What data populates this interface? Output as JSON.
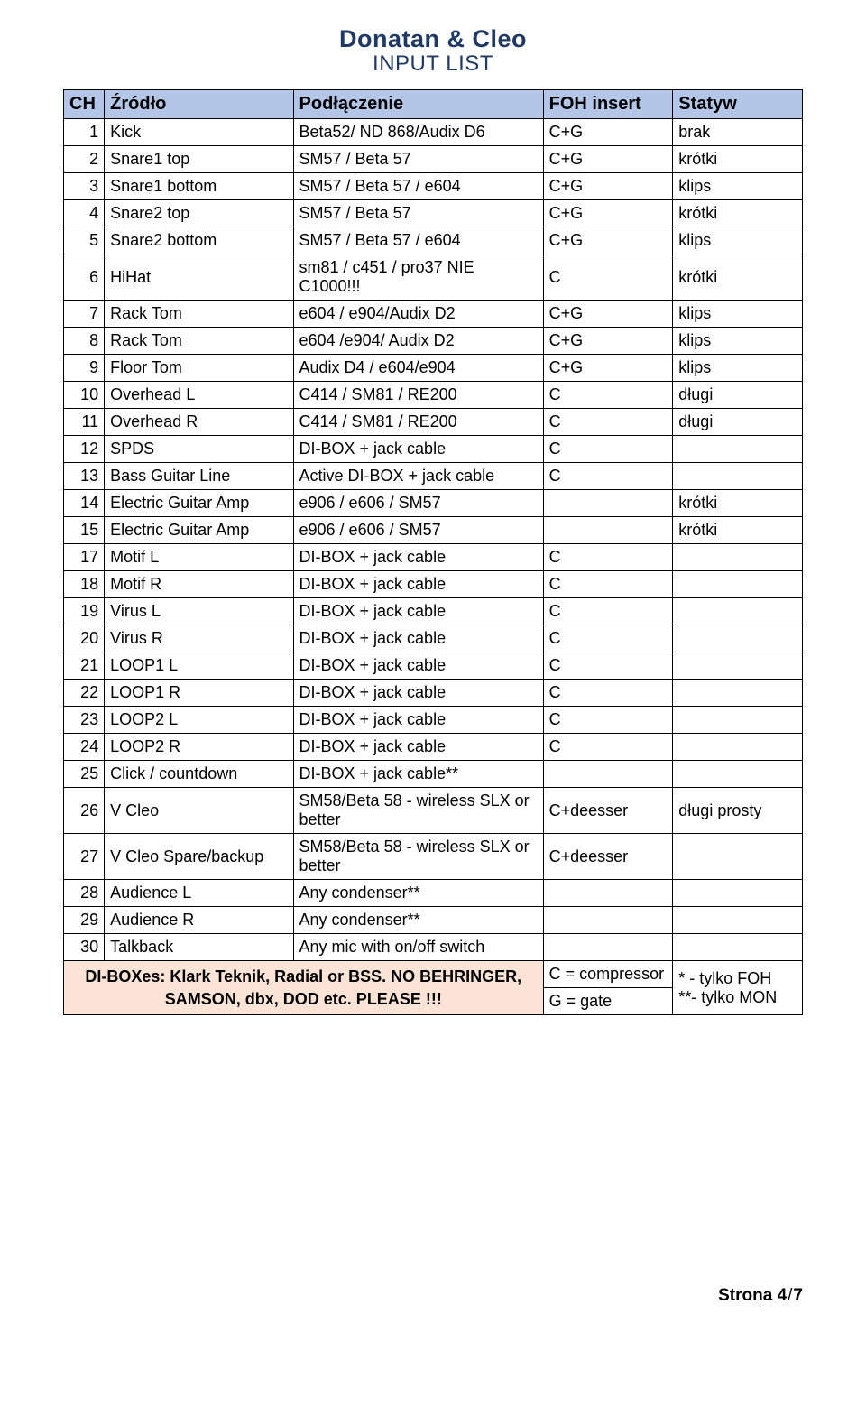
{
  "title": {
    "line1": "Donatan & Cleo",
    "line2": "INPUT LIST"
  },
  "columns": [
    "CH",
    "Źródło",
    "Podłączenie",
    "FOH insert",
    "Statyw"
  ],
  "rows": [
    {
      "ch": "1",
      "src": "Kick",
      "conn": "Beta52/ ND 868/Audix D6",
      "foh": "C+G",
      "stand": "brak"
    },
    {
      "ch": "2",
      "src": "Snare1 top",
      "conn": "SM57 / Beta 57",
      "foh": "C+G",
      "stand": "krótki"
    },
    {
      "ch": "3",
      "src": "Snare1 bottom",
      "conn": "SM57 / Beta 57 / e604",
      "foh": "C+G",
      "stand": "klips"
    },
    {
      "ch": "4",
      "src": "Snare2 top",
      "conn": "SM57 / Beta 57",
      "foh": "C+G",
      "stand": "krótki"
    },
    {
      "ch": "5",
      "src": "Snare2 bottom",
      "conn": "SM57 / Beta 57 / e604",
      "foh": "C+G",
      "stand": "klips"
    },
    {
      "ch": "6",
      "src": "HiHat",
      "conn": "sm81 / c451 / pro37 NIE C1000!!!",
      "foh": "C",
      "stand": "krótki"
    },
    {
      "ch": "7",
      "src": "Rack Tom",
      "conn": "e604 / e904/Audix D2",
      "foh": "C+G",
      "stand": "klips"
    },
    {
      "ch": "8",
      "src": "Rack Tom",
      "conn": "e604 /e904/ Audix D2",
      "foh": "C+G",
      "stand": "klips"
    },
    {
      "ch": "9",
      "src": "Floor Tom",
      "conn": "Audix D4 / e604/e904",
      "foh": "C+G",
      "stand": "klips"
    },
    {
      "ch": "10",
      "src": "Overhead L",
      "conn": "C414 / SM81 / RE200",
      "foh": "C",
      "stand": "długi"
    },
    {
      "ch": "11",
      "src": "Overhead R",
      "conn": "C414 / SM81 / RE200",
      "foh": "C",
      "stand": "długi"
    },
    {
      "ch": "12",
      "src": "SPDS",
      "conn": "DI-BOX + jack cable",
      "foh": "C",
      "stand": ""
    },
    {
      "ch": "13",
      "src": "Bass Guitar Line",
      "conn": "Active DI-BOX + jack cable",
      "foh": "C",
      "stand": ""
    },
    {
      "ch": "14",
      "src": "Electric Guitar Amp",
      "conn": "e906 / e606 / SM57",
      "foh": "",
      "stand": "krótki"
    },
    {
      "ch": "15",
      "src": "Electric Guitar Amp",
      "conn": "e906 / e606 / SM57",
      "foh": "",
      "stand": "krótki"
    },
    {
      "ch": "17",
      "src": "Motif L",
      "conn": "DI-BOX + jack cable",
      "foh": "C",
      "stand": ""
    },
    {
      "ch": "18",
      "src": "Motif R",
      "conn": "DI-BOX + jack cable",
      "foh": "C",
      "stand": ""
    },
    {
      "ch": "19",
      "src": "Virus L",
      "conn": "DI-BOX + jack cable",
      "foh": "C",
      "stand": ""
    },
    {
      "ch": "20",
      "src": "Virus R",
      "conn": "DI-BOX + jack cable",
      "foh": "C",
      "stand": ""
    },
    {
      "ch": "21",
      "src": "LOOP1 L",
      "conn": "DI-BOX + jack cable",
      "foh": "C",
      "stand": ""
    },
    {
      "ch": "22",
      "src": "LOOP1 R",
      "conn": "DI-BOX + jack cable",
      "foh": "C",
      "stand": ""
    },
    {
      "ch": "23",
      "src": "LOOP2 L",
      "conn": "DI-BOX + jack cable",
      "foh": "C",
      "stand": ""
    },
    {
      "ch": "24",
      "src": "LOOP2 R",
      "conn": "DI-BOX + jack cable",
      "foh": "C",
      "stand": ""
    },
    {
      "ch": "25",
      "src": "Click / countdown",
      "conn": "DI-BOX + jack cable**",
      "foh": "",
      "stand": ""
    },
    {
      "ch": "26",
      "src": "V Cleo",
      "conn": "SM58/Beta 58 - wireless SLX or better",
      "foh": "C+deesser",
      "stand": "długi prosty"
    },
    {
      "ch": "27",
      "src": "V Cleo Spare/backup",
      "conn": "SM58/Beta 58 - wireless SLX or better",
      "foh": "C+deesser",
      "stand": ""
    },
    {
      "ch": "28",
      "src": "Audience L",
      "conn": "Any condenser**",
      "foh": "",
      "stand": ""
    },
    {
      "ch": "29",
      "src": "Audience R",
      "conn": "Any condenser**",
      "foh": "",
      "stand": ""
    },
    {
      "ch": "30",
      "src": "Talkback",
      "conn": "Any mic with on/off switch",
      "foh": "",
      "stand": ""
    }
  ],
  "note": "DI-BOXes: Klark Teknik, Radial or BSS. NO BEHRINGER, SAMSON, dbx, DOD etc. PLEASE !!!",
  "legend": {
    "c": "C = compressor",
    "g": "G = gate",
    "star": "* - tylko FOH\n**- tylko MON"
  },
  "footer": {
    "label": "Strona ",
    "page": "4",
    "sep": "/",
    "total": "7"
  },
  "colors": {
    "header_bg": "#b4c6e7",
    "note_bg": "#fbe4d5",
    "title_color": "#1f3864",
    "border": "#000000",
    "page_bg": "#ffffff"
  }
}
